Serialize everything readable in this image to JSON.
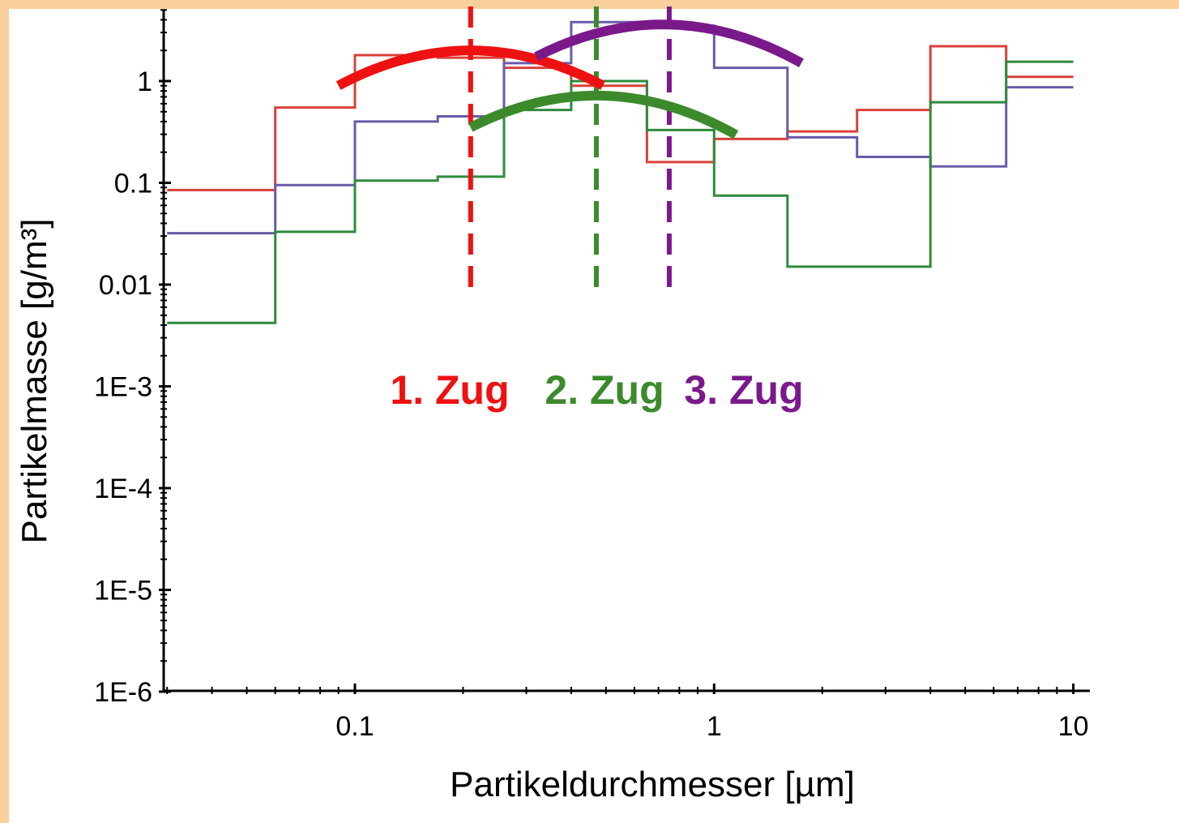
{
  "colors": {
    "page_border": "#fbcf9c",
    "red": "#d9403a",
    "blue": "#6a5aa8",
    "green": "#2e8b3c",
    "annot_red": "#ee1111",
    "annot_green": "#3c8a2c",
    "annot_purple": "#7a1a8a"
  },
  "chart_data": {
    "type": "line",
    "xlabel": "Partikeldurchmesser [µm]",
    "ylabel": "Partikelmasse  [g/m³]",
    "xscale": "log",
    "yscale": "log",
    "xlim": [
      0.03,
      12
    ],
    "ylim": [
      1e-06,
      5
    ],
    "x_ticks": [
      0.1,
      1,
      10
    ],
    "x_tick_labels": [
      "0.1",
      "1",
      "10"
    ],
    "y_ticks": [
      1,
      0.1,
      0.01,
      0.001,
      0.0001,
      1e-05,
      1e-06
    ],
    "y_tick_labels": [
      "1",
      "0.1",
      "0.01",
      "1E-3",
      "1E-4",
      "1E-5",
      "1E-6"
    ],
    "bin_edges": [
      0.03,
      0.06,
      0.1,
      0.17,
      0.26,
      0.4,
      0.65,
      1.0,
      1.6,
      2.5,
      4.0,
      6.5,
      10
    ],
    "series": [
      {
        "color": "red",
        "values": [
          0.085,
          0.55,
          1.8,
          1.7,
          1.35,
          0.9,
          0.16,
          0.27,
          0.32,
          0.52,
          2.2,
          1.1
        ]
      },
      {
        "color": "blue",
        "values": [
          0.032,
          0.095,
          0.4,
          0.45,
          1.5,
          3.8,
          3.5,
          1.35,
          0.28,
          0.18,
          0.145,
          0.87
        ]
      },
      {
        "color": "green",
        "values": [
          0.0042,
          0.033,
          0.105,
          0.115,
          0.52,
          1.0,
          0.33,
          0.075,
          0.015,
          0.015,
          0.62,
          1.55
        ]
      }
    ],
    "fits": [
      {
        "color": "annot_red",
        "center": 0.21,
        "peak": 2.0,
        "x_range": [
          0.09,
          0.49
        ],
        "label": "1. Zug",
        "marker_x": 0.21
      },
      {
        "color": "annot_green",
        "center": 0.47,
        "peak": 0.72,
        "x_range": [
          0.21,
          1.15
        ],
        "label": "2. Zug",
        "marker_x": 0.47
      },
      {
        "color": "annot_purple",
        "center": 0.72,
        "peak": 3.6,
        "x_range": [
          0.32,
          1.75
        ],
        "label": "3. Zug",
        "marker_x": 0.75
      }
    ]
  }
}
